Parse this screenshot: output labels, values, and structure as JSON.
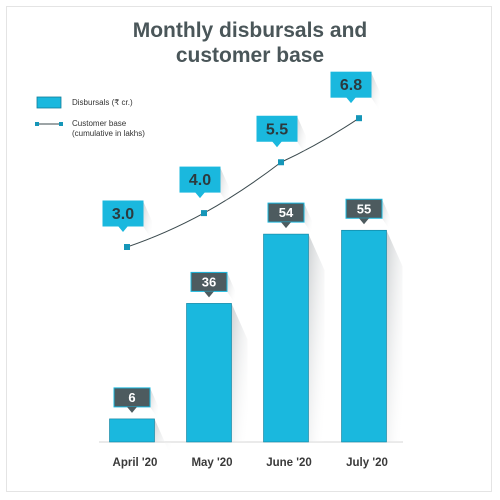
{
  "chart_data": {
    "type": "bar",
    "title_lines": [
      "Monthly disbursals and",
      "customer base"
    ],
    "categories": [
      "April '20",
      "May '20",
      "June '20",
      "July '20"
    ],
    "series": [
      {
        "name": "Disbursals (₹ cr.)",
        "kind": "bar",
        "values": [
          6,
          36,
          54,
          55
        ],
        "value_labels": [
          "6",
          "36",
          "54",
          "55"
        ]
      },
      {
        "name": "Customer base (cumulative in lakhs)",
        "name_lines": [
          "Customer base",
          "(cumulative in lakhs)"
        ],
        "kind": "line",
        "values": [
          3.0,
          4.0,
          5.5,
          6.8
        ],
        "value_labels": [
          "3.0",
          "4.0",
          "5.5",
          "6.8"
        ]
      }
    ],
    "legend_position": "top-left",
    "grid": false,
    "colors": {
      "bar": "#1ab8de",
      "bar_label_box": "#4d5b5f",
      "line": "#3b4a4e",
      "line_marker": "#1596b8",
      "line_label_box": "#1ab8de",
      "title": "#4a5659"
    }
  }
}
